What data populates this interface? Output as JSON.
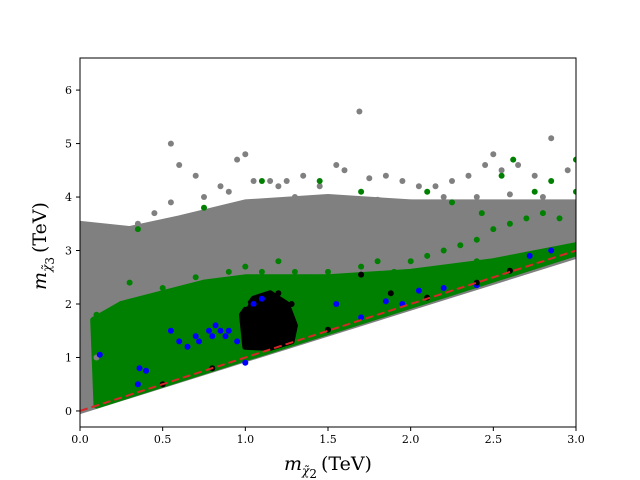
{
  "chart_data": {
    "type": "scatter",
    "title": "",
    "xlabel": {
      "prefix": "m",
      "subscript": "χ̃",
      "sub_super": "0",
      "sub_index": "2",
      "unit": "(TeV)"
    },
    "ylabel": {
      "prefix": "m",
      "subscript": "χ̃",
      "sub_super": "0",
      "sub_index": "3",
      "unit": "(TeV)"
    },
    "xlim": [
      0.0,
      3.0
    ],
    "ylim": [
      -0.3,
      6.6
    ],
    "xticks": [
      "0.0",
      "0.5",
      "1.0",
      "1.5",
      "2.0",
      "2.5",
      "3.0"
    ],
    "yticks": [
      "0",
      "1",
      "2",
      "3",
      "4",
      "5",
      "6"
    ],
    "grid": false,
    "legend": "none",
    "reference_line": {
      "style": "dashed",
      "color": "#d62728",
      "points": [
        [
          0.0,
          0.0
        ],
        [
          3.0,
          3.0
        ]
      ]
    },
    "series": [
      {
        "color": "#808080",
        "points": [
          [
            0.1,
            3.4
          ],
          [
            0.15,
            3.1
          ],
          [
            0.2,
            2.9
          ],
          [
            0.3,
            3.35
          ],
          [
            0.35,
            3.5
          ],
          [
            0.45,
            3.7
          ],
          [
            0.55,
            3.9
          ],
          [
            0.55,
            5.0
          ],
          [
            0.6,
            4.6
          ],
          [
            0.7,
            4.4
          ],
          [
            0.75,
            4.0
          ],
          [
            0.85,
            4.2
          ],
          [
            0.9,
            4.1
          ],
          [
            0.95,
            4.7
          ],
          [
            1.0,
            4.8
          ],
          [
            1.05,
            4.3
          ],
          [
            1.15,
            4.3
          ],
          [
            1.2,
            4.2
          ],
          [
            1.25,
            4.3
          ],
          [
            1.3,
            4.0
          ],
          [
            1.35,
            4.4
          ],
          [
            1.45,
            4.2
          ],
          [
            1.55,
            4.6
          ],
          [
            1.6,
            4.5
          ],
          [
            1.69,
            5.6
          ],
          [
            1.75,
            4.35
          ],
          [
            1.85,
            4.4
          ],
          [
            1.95,
            4.3
          ],
          [
            2.05,
            4.2
          ],
          [
            2.15,
            4.2
          ],
          [
            2.25,
            4.3
          ],
          [
            2.35,
            4.4
          ],
          [
            2.45,
            4.6
          ],
          [
            2.5,
            4.8
          ],
          [
            2.55,
            4.5
          ],
          [
            2.65,
            4.6
          ],
          [
            2.75,
            4.4
          ],
          [
            2.85,
            5.1
          ],
          [
            2.95,
            4.5
          ],
          [
            0.2,
            2.6
          ],
          [
            0.4,
            3.2
          ],
          [
            0.6,
            3.3
          ],
          [
            0.8,
            3.5
          ],
          [
            1.0,
            3.6
          ],
          [
            1.2,
            3.7
          ],
          [
            1.4,
            3.8
          ],
          [
            1.6,
            3.9
          ],
          [
            1.8,
            3.95
          ],
          [
            2.0,
            3.9
          ],
          [
            2.2,
            4.0
          ],
          [
            2.4,
            4.0
          ],
          [
            2.6,
            4.05
          ],
          [
            2.8,
            4.0
          ],
          [
            3.0,
            3.9
          ],
          [
            0.1,
            1.0
          ],
          [
            0.1,
            2.0
          ],
          [
            0.1,
            3.0
          ],
          [
            1.3,
            3.2
          ],
          [
            2.2,
            3.5
          ],
          [
            2.7,
            3.6
          ]
        ]
      },
      {
        "color": "#008000",
        "points": [
          [
            0.1,
            1.8
          ],
          [
            0.15,
            1.5
          ],
          [
            0.25,
            2.0
          ],
          [
            0.3,
            2.4
          ],
          [
            0.4,
            2.1
          ],
          [
            0.5,
            2.3
          ],
          [
            0.6,
            2.2
          ],
          [
            0.7,
            2.5
          ],
          [
            0.8,
            2.4
          ],
          [
            0.9,
            2.6
          ],
          [
            1.0,
            2.7
          ],
          [
            1.1,
            2.6
          ],
          [
            1.2,
            2.8
          ],
          [
            1.3,
            2.6
          ],
          [
            1.4,
            2.5
          ],
          [
            1.5,
            2.6
          ],
          [
            1.6,
            2.5
          ],
          [
            1.7,
            2.7
          ],
          [
            1.8,
            2.8
          ],
          [
            1.9,
            2.6
          ],
          [
            2.0,
            2.8
          ],
          [
            2.1,
            2.9
          ],
          [
            2.2,
            3.0
          ],
          [
            2.3,
            3.1
          ],
          [
            2.4,
            3.2
          ],
          [
            2.5,
            3.4
          ],
          [
            2.6,
            3.5
          ],
          [
            2.7,
            3.6
          ],
          [
            2.8,
            3.7
          ],
          [
            2.9,
            3.6
          ],
          [
            0.35,
            3.4
          ],
          [
            0.75,
            3.8
          ],
          [
            1.1,
            4.3
          ],
          [
            1.45,
            4.3
          ],
          [
            1.7,
            4.1
          ],
          [
            2.1,
            4.1
          ],
          [
            2.25,
            3.9
          ],
          [
            2.43,
            3.7
          ],
          [
            2.55,
            4.4
          ],
          [
            2.62,
            4.7
          ],
          [
            2.75,
            4.1
          ],
          [
            2.85,
            4.3
          ],
          [
            3.0,
            4.7
          ],
          [
            3.0,
            4.1
          ],
          [
            0.5,
            1.6
          ],
          [
            0.8,
            1.8
          ],
          [
            1.0,
            2.0
          ],
          [
            1.6,
            2.2
          ],
          [
            2.0,
            2.4
          ],
          [
            2.4,
            2.8
          ]
        ]
      },
      {
        "color": "#0000ff",
        "points": [
          [
            0.12,
            1.05
          ],
          [
            0.35,
            0.5
          ],
          [
            0.36,
            0.8
          ],
          [
            0.4,
            0.75
          ],
          [
            0.55,
            1.5
          ],
          [
            0.6,
            1.3
          ],
          [
            0.65,
            1.2
          ],
          [
            0.7,
            1.4
          ],
          [
            0.72,
            1.3
          ],
          [
            0.78,
            1.5
          ],
          [
            0.8,
            1.4
          ],
          [
            0.82,
            1.6
          ],
          [
            0.85,
            1.5
          ],
          [
            0.88,
            1.4
          ],
          [
            0.9,
            1.5
          ],
          [
            0.95,
            1.3
          ],
          [
            1.05,
            2.0
          ],
          [
            1.1,
            2.1
          ],
          [
            1.0,
            0.9
          ],
          [
            1.55,
            2.0
          ],
          [
            1.85,
            2.05
          ],
          [
            2.05,
            2.25
          ],
          [
            2.4,
            2.35
          ],
          [
            2.72,
            2.9
          ],
          [
            2.85,
            3.0
          ],
          [
            2.2,
            2.3
          ],
          [
            1.95,
            2.0
          ],
          [
            1.7,
            1.75
          ]
        ]
      },
      {
        "color": "#000000",
        "points": [
          [
            1.0,
            1.3
          ],
          [
            1.02,
            1.6
          ],
          [
            1.05,
            1.9
          ],
          [
            1.08,
            1.4
          ],
          [
            1.1,
            1.7
          ],
          [
            1.12,
            2.0
          ],
          [
            1.15,
            1.5
          ],
          [
            1.18,
            1.8
          ],
          [
            1.2,
            2.2
          ],
          [
            1.22,
            1.4
          ],
          [
            1.25,
            1.7
          ],
          [
            1.28,
            2.0
          ],
          [
            1.05,
            1.2
          ],
          [
            1.1,
            1.25
          ],
          [
            1.15,
            1.2
          ],
          [
            1.2,
            1.25
          ],
          [
            1.25,
            1.3
          ],
          [
            1.28,
            1.6
          ],
          [
            1.03,
            1.75
          ],
          [
            1.18,
            1.35
          ],
          [
            1.7,
            2.55
          ],
          [
            1.88,
            2.2
          ],
          [
            2.6,
            2.62
          ],
          [
            2.4,
            2.4
          ],
          [
            2.1,
            2.12
          ],
          [
            1.5,
            1.52
          ],
          [
            0.5,
            0.5
          ],
          [
            0.8,
            0.8
          ]
        ]
      }
    ],
    "regions": [
      {
        "color": "#808080",
        "polygon": [
          [
            0.0,
            0.0
          ],
          [
            0.0,
            3.5
          ],
          [
            0.3,
            3.4
          ],
          [
            0.6,
            3.6
          ],
          [
            1.0,
            3.9
          ],
          [
            1.5,
            4.0
          ],
          [
            2.0,
            3.9
          ],
          [
            2.5,
            3.9
          ],
          [
            3.0,
            3.9
          ],
          [
            3.0,
            2.9
          ],
          [
            0.0,
            0.0
          ]
        ]
      },
      {
        "color": "#008000",
        "polygon": [
          [
            0.1,
            0.1
          ],
          [
            0.08,
            1.7
          ],
          [
            0.25,
            2.0
          ],
          [
            0.5,
            2.2
          ],
          [
            0.75,
            2.4
          ],
          [
            1.0,
            2.5
          ],
          [
            1.5,
            2.5
          ],
          [
            2.0,
            2.6
          ],
          [
            2.5,
            2.8
          ],
          [
            3.0,
            3.1
          ],
          [
            3.0,
            2.95
          ],
          [
            0.1,
            0.1
          ]
        ]
      },
      {
        "color": "#000000",
        "polygon": [
          [
            1.0,
            1.2
          ],
          [
            0.98,
            1.8
          ],
          [
            1.05,
            2.1
          ],
          [
            1.15,
            2.2
          ],
          [
            1.25,
            2.0
          ],
          [
            1.3,
            1.6
          ],
          [
            1.28,
            1.3
          ],
          [
            1.15,
            1.18
          ],
          [
            1.0,
            1.2
          ]
        ]
      }
    ]
  }
}
